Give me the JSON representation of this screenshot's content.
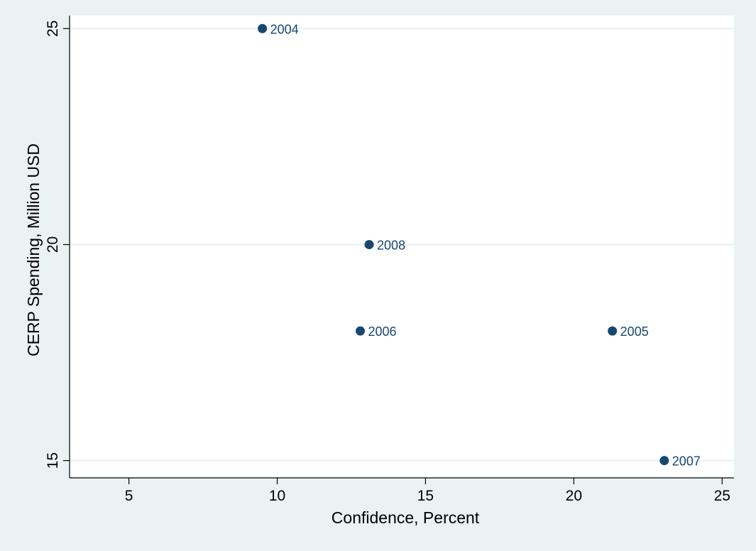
{
  "chart_data": {
    "type": "scatter",
    "xlabel": "Confidence, Percent",
    "ylabel": "CERP Spending, Million USD",
    "xlim": [
      3,
      25.4
    ],
    "ylim": [
      14.6,
      25.3
    ],
    "xticks": [
      5,
      10,
      15,
      20,
      25
    ],
    "yticks": [
      15,
      20,
      25
    ],
    "grid": "horizontal",
    "points": [
      {
        "x": 9.5,
        "y": 25,
        "label": "2004"
      },
      {
        "x": 21.3,
        "y": 18,
        "label": "2005"
      },
      {
        "x": 12.8,
        "y": 18,
        "label": "2006"
      },
      {
        "x": 23.05,
        "y": 15,
        "label": "2007"
      },
      {
        "x": 13.1,
        "y": 20,
        "label": "2008"
      }
    ],
    "colors": {
      "background": "#eaf2f3",
      "plot_area": "#ffffff",
      "grid": "#eaf2f3",
      "marker": "#1a476f",
      "point_label": "#1a476f"
    }
  }
}
